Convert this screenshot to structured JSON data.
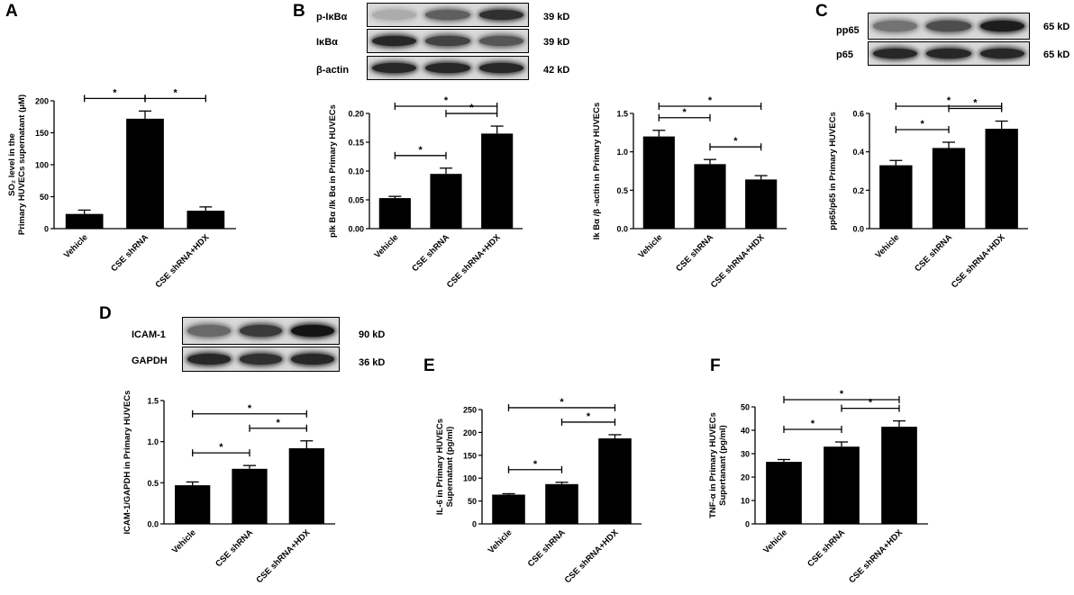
{
  "panels": {
    "A": {
      "letter": "A"
    },
    "B": {
      "letter": "B"
    },
    "C": {
      "letter": "C"
    },
    "D": {
      "letter": "D"
    },
    "E": {
      "letter": "E"
    },
    "F": {
      "letter": "F"
    }
  },
  "blots": {
    "B": [
      {
        "label": "p-IκBα",
        "size": "39 kD",
        "intensity": [
          0.15,
          0.55,
          0.8
        ]
      },
      {
        "label": "IκBα",
        "size": "39 kD",
        "intensity": [
          0.85,
          0.7,
          0.6
        ]
      },
      {
        "label": "β-actin",
        "size": "42 kD",
        "intensity": [
          0.85,
          0.85,
          0.85
        ]
      }
    ],
    "C": [
      {
        "label": "pp65",
        "size": "65 kD",
        "intensity": [
          0.45,
          0.65,
          0.9
        ]
      },
      {
        "label": "p65",
        "size": "65 kD",
        "intensity": [
          0.85,
          0.85,
          0.85
        ]
      }
    ],
    "D": [
      {
        "label": "ICAM-1",
        "size": "90 kD",
        "intensity": [
          0.5,
          0.75,
          0.95
        ]
      },
      {
        "label": "GAPDH",
        "size": "36 kD",
        "intensity": [
          0.85,
          0.8,
          0.85
        ]
      }
    ]
  },
  "chart_data": [
    {
      "id": "A",
      "type": "bar",
      "categories": [
        "Vehicle",
        "CSE shRNA",
        "CSE shRNA+HDX"
      ],
      "values": [
        23,
        172,
        28
      ],
      "errors": [
        6,
        12,
        6
      ],
      "ylabel_sub": "SO₂ level in the",
      "ylabel": "Primary HUVECs supernatant (μM)",
      "ylim": [
        0,
        200
      ],
      "yticks": [
        "0",
        "50",
        "100",
        "150",
        "200"
      ],
      "sig": [
        [
          0,
          1
        ],
        [
          1,
          2
        ]
      ],
      "star": "*"
    },
    {
      "id": "B1",
      "type": "bar",
      "categories": [
        "Vehicle",
        "CSE shRNA",
        "CSE shRNA+HDX"
      ],
      "values": [
        0.053,
        0.095,
        0.165
      ],
      "errors": [
        0.003,
        0.01,
        0.013
      ],
      "ylabel": "pIk Bα /Ik Bα in Primary HUVECs",
      "ylim": [
        0,
        0.2
      ],
      "yticks": [
        "0.00",
        "0.05",
        "0.10",
        "0.15",
        "0.20"
      ],
      "sig": [
        [
          0,
          1
        ],
        [
          1,
          2
        ],
        [
          0,
          2
        ]
      ],
      "star": "*"
    },
    {
      "id": "B2",
      "type": "bar",
      "categories": [
        "Vehicle",
        "CSE shRNA",
        "CSE shRNA+HDX"
      ],
      "values": [
        1.2,
        0.84,
        0.64
      ],
      "errors": [
        0.08,
        0.06,
        0.05
      ],
      "ylabel": "Ik Bα /β -actin in Primary HUVECs",
      "ylim": [
        0,
        1.5
      ],
      "yticks": [
        "0.0",
        "0.5",
        "1.0",
        "1.5"
      ],
      "sig": [
        [
          0,
          1
        ],
        [
          1,
          2
        ],
        [
          0,
          2
        ]
      ],
      "star": "*"
    },
    {
      "id": "C",
      "type": "bar",
      "categories": [
        "Vehicle",
        "CSE shRNA",
        "CSE shRNA+HDX"
      ],
      "values": [
        0.33,
        0.42,
        0.52
      ],
      "errors": [
        0.025,
        0.03,
        0.04
      ],
      "ylabel": "pp65/p65 in Primary HUVECs",
      "ylim": [
        0,
        0.6
      ],
      "yticks": [
        "0.0",
        "0.2",
        "0.4",
        "0.6"
      ],
      "sig": [
        [
          0,
          1
        ],
        [
          1,
          2
        ],
        [
          0,
          2
        ]
      ],
      "star": "*"
    },
    {
      "id": "D",
      "type": "bar",
      "categories": [
        "Vehicle",
        "CSE shRNA",
        "CSE shRNA+HDX"
      ],
      "values": [
        0.47,
        0.67,
        0.92
      ],
      "errors": [
        0.04,
        0.04,
        0.09
      ],
      "ylabel": "ICAM-1/GAPDH in Primary HUVECs",
      "ylim": [
        0,
        1.5
      ],
      "yticks": [
        "0.0",
        "0.5",
        "1.0",
        "1.5"
      ],
      "sig": [
        [
          0,
          1
        ],
        [
          1,
          2
        ],
        [
          0,
          2
        ]
      ],
      "star": "*"
    },
    {
      "id": "E",
      "type": "bar",
      "categories": [
        "Vehicle",
        "CSE shRNA",
        "CSE shRNA+HDX"
      ],
      "values": [
        64,
        87,
        187
      ],
      "errors": [
        2,
        4,
        8
      ],
      "ylabel_sub": "IL-6 in Primary HUVECs",
      "ylabel": "Supernatant (pg/ml)",
      "ylim": [
        0,
        250
      ],
      "yticks": [
        "0",
        "50",
        "100",
        "150",
        "200",
        "250"
      ],
      "sig": [
        [
          0,
          1
        ],
        [
          1,
          2
        ],
        [
          0,
          2
        ]
      ],
      "star": "*"
    },
    {
      "id": "F",
      "type": "bar",
      "categories": [
        "Vehicle",
        "CSE shRNA",
        "CSE shRNA+HDX"
      ],
      "values": [
        26.5,
        33,
        41.5
      ],
      "errors": [
        1,
        2,
        2.5
      ],
      "ylabel_sub": "TNF-α  in Primary HUVECs",
      "ylabel": "Supertanant (pg/ml)",
      "ylim": [
        0,
        50
      ],
      "yticks": [
        "0",
        "10",
        "20",
        "30",
        "40",
        "50"
      ],
      "sig": [
        [
          0,
          1
        ],
        [
          1,
          2
        ],
        [
          0,
          2
        ]
      ],
      "star": "*"
    }
  ]
}
